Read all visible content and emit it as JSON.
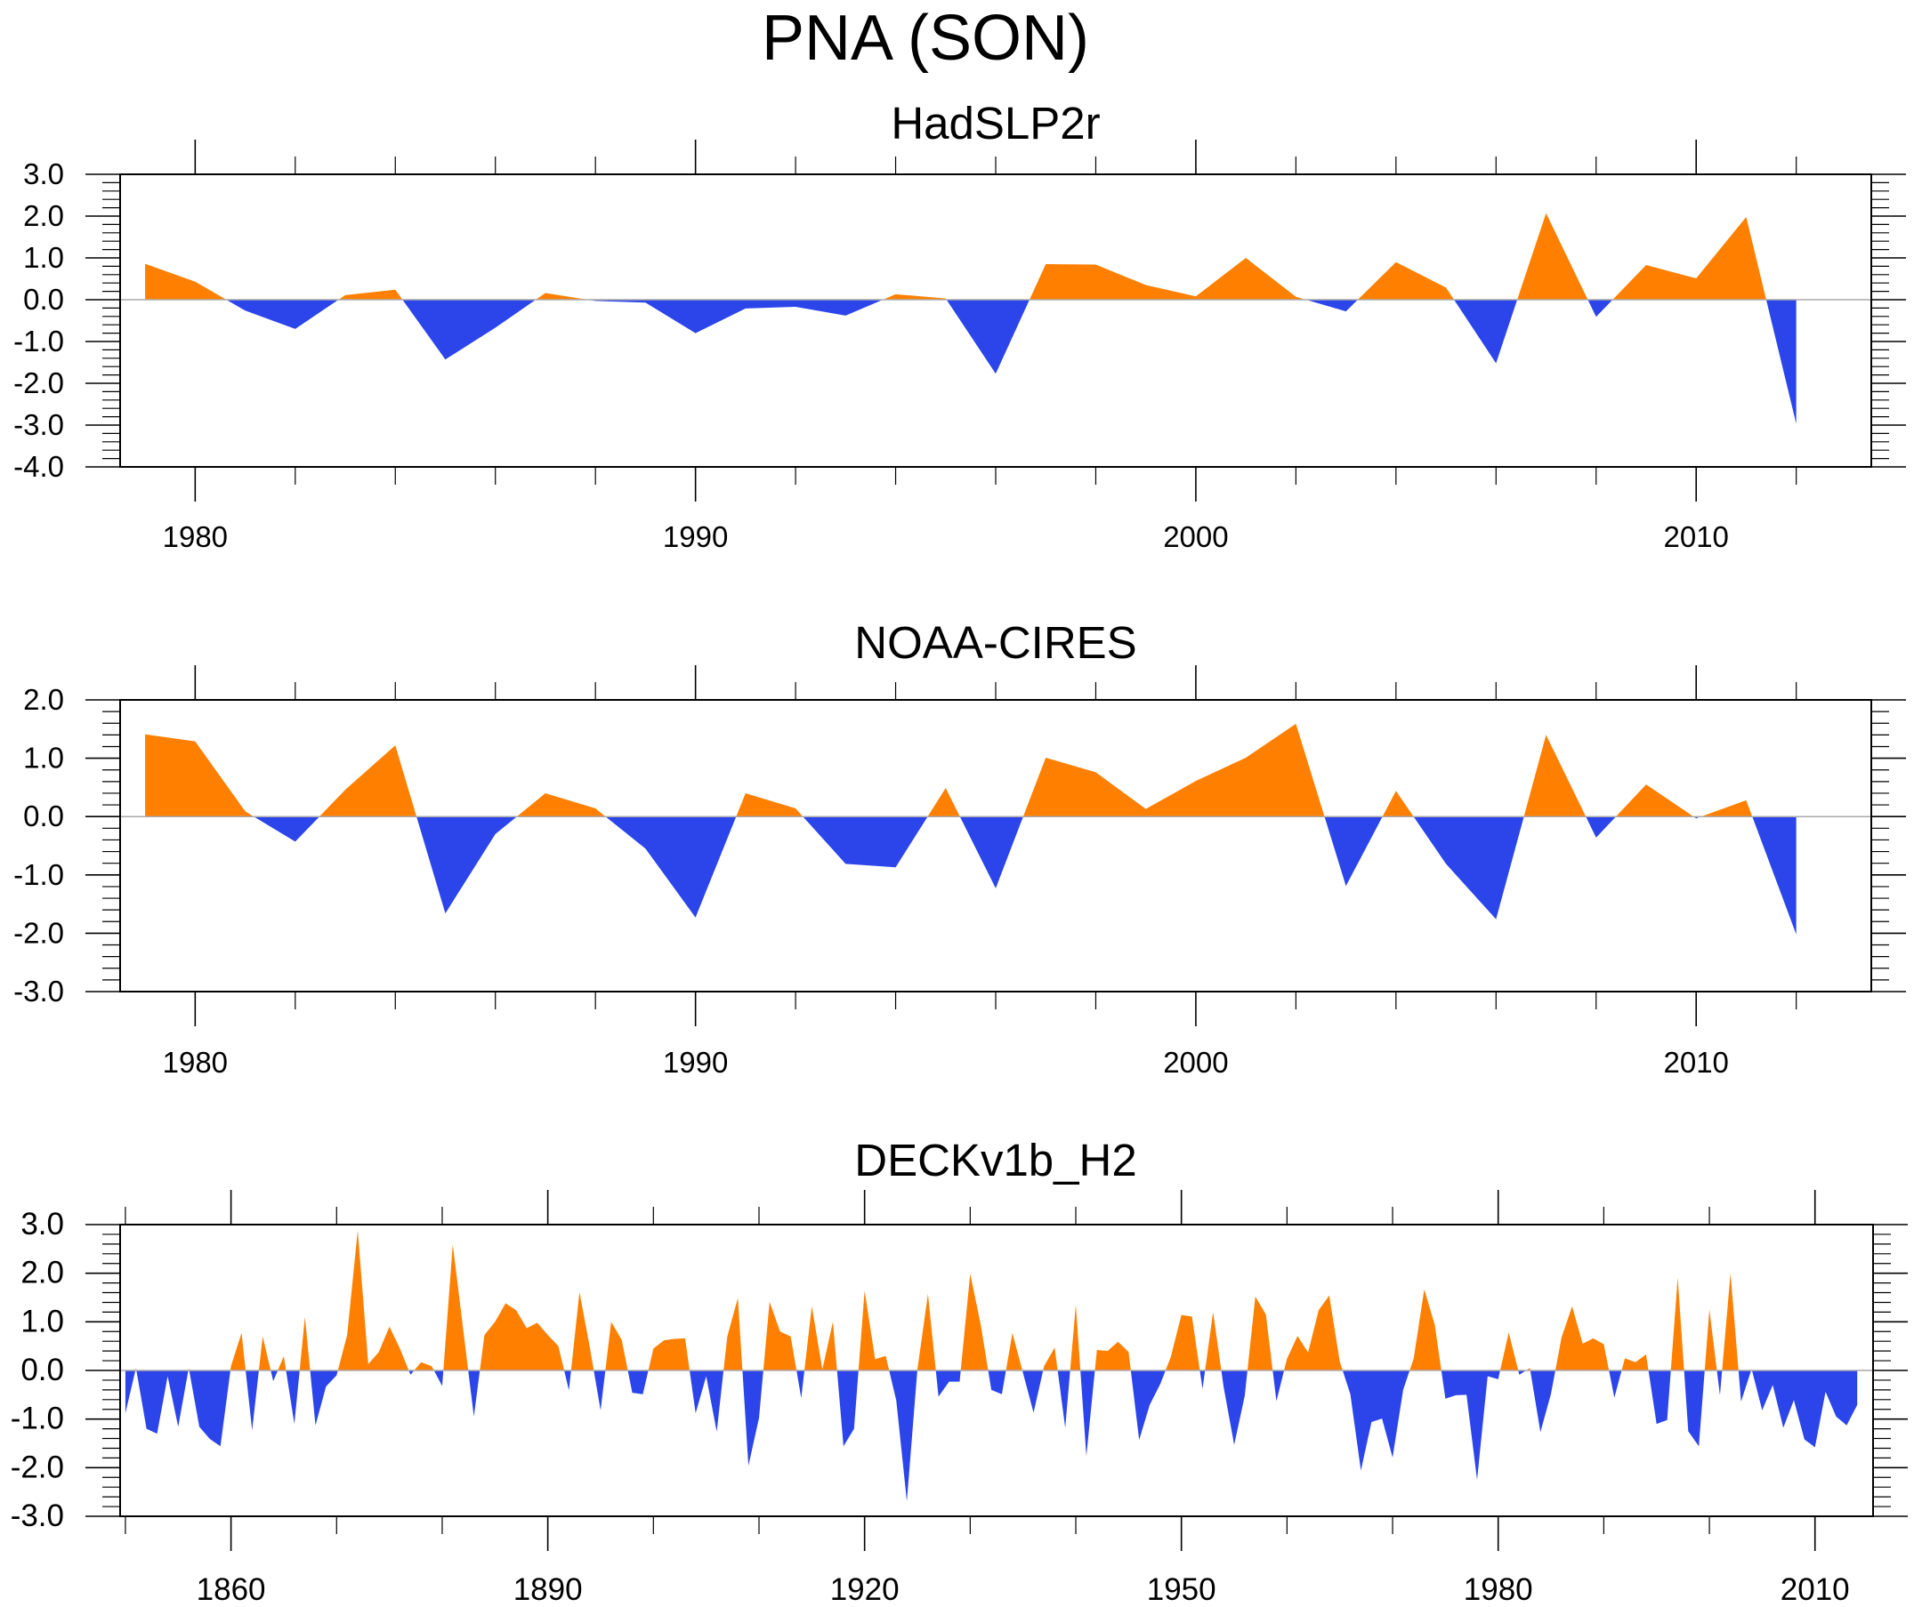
{
  "title": "PNA (SON)",
  "colors": {
    "positive": "#FF8000",
    "negative": "#2B45EB",
    "zero_line": "#AAAAAA",
    "axis": "#000000"
  },
  "chart_data": [
    {
      "type": "area",
      "title": "HadSLP2r",
      "xlabel": "",
      "ylabel": "",
      "xlim": [
        1978.5,
        2013.5
      ],
      "ylim": [
        -4.0,
        3.0
      ],
      "x_major_ticks": [
        1980,
        1990,
        2000,
        2010
      ],
      "x_major_tick_labels": [
        "1980",
        "1990",
        "2000",
        "2010"
      ],
      "x_minor_step": 2,
      "y_major_ticks": [
        3.0,
        2.0,
        1.0,
        0.0,
        -1.0,
        -2.0,
        -3.0,
        -4.0
      ],
      "y_tick_labels": [
        "3.0",
        "2.0",
        "1.0",
        "0.0",
        "-1.0",
        "-2.0",
        "-3.0",
        "-4.0"
      ],
      "y_minor_step": 0.2,
      "grid": false,
      "fill_above_zero": "positive",
      "fill_below_zero": "negative",
      "x_start": 1979,
      "values": [
        0.86,
        0.43,
        -0.26,
        -0.7,
        0.11,
        0.24,
        -1.43,
        -0.67,
        0.16,
        -0.03,
        -0.07,
        -0.8,
        -0.21,
        -0.17,
        -0.38,
        0.13,
        0.03,
        -1.77,
        0.85,
        0.84,
        0.35,
        0.08,
        1.0,
        0.07,
        -0.28,
        0.9,
        0.29,
        -1.52,
        2.07,
        -0.41,
        0.83,
        0.51,
        1.98,
        -2.97
      ]
    },
    {
      "type": "area",
      "title": "NOAA-CIRES",
      "xlabel": "",
      "ylabel": "",
      "xlim": [
        1978.5,
        2013.5
      ],
      "ylim": [
        -3.0,
        2.0
      ],
      "x_major_ticks": [
        1980,
        1990,
        2000,
        2010
      ],
      "x_major_tick_labels": [
        "1980",
        "1990",
        "2000",
        "2010"
      ],
      "x_minor_step": 2,
      "y_major_ticks": [
        2.0,
        1.0,
        0.0,
        -1.0,
        -2.0,
        -3.0
      ],
      "y_tick_labels": [
        "2.0",
        "1.0",
        "0.0",
        "-1.0",
        "-2.0",
        "-3.0"
      ],
      "y_minor_step": 0.2,
      "grid": false,
      "fill_above_zero": "positive",
      "fill_below_zero": "negative",
      "x_start": 1979,
      "values": [
        1.41,
        1.29,
        0.09,
        -0.43,
        0.46,
        1.22,
        -1.66,
        -0.3,
        0.4,
        0.14,
        -0.55,
        -1.73,
        0.4,
        0.14,
        -0.81,
        -0.87,
        0.49,
        -1.23,
        1.01,
        0.76,
        0.13,
        0.61,
        1.01,
        1.59,
        -1.19,
        0.44,
        -0.81,
        -1.76,
        1.4,
        -0.36,
        0.55,
        -0.03,
        0.28,
        -2.02
      ]
    },
    {
      "type": "area",
      "title": "DECKv1b_H2",
      "xlabel": "",
      "ylabel": "",
      "xlim": [
        1849.5,
        2015.5
      ],
      "ylim": [
        -3.0,
        3.0
      ],
      "x_major_ticks": [
        1860,
        1890,
        1920,
        1950,
        1980,
        2010
      ],
      "x_major_tick_labels": [
        "1860",
        "1890",
        "1920",
        "1950",
        "1980",
        "2010"
      ],
      "x_minor_step": 10,
      "y_major_ticks": [
        3.0,
        2.0,
        1.0,
        0.0,
        -1.0,
        -2.0,
        -3.0
      ],
      "y_tick_labels": [
        "3.0",
        "2.0",
        "1.0",
        "0.0",
        "-1.0",
        "-2.0",
        "-3.0"
      ],
      "y_minor_step": 0.2,
      "grid": false,
      "fill_above_zero": "positive",
      "fill_below_zero": "negative",
      "x_start": 1850,
      "values": [
        -0.88,
        0.05,
        -1.2,
        -1.3,
        -0.12,
        -1.16,
        0.05,
        -1.16,
        -1.41,
        -1.56,
        0.09,
        0.77,
        -1.23,
        0.7,
        -0.22,
        0.29,
        -1.1,
        1.1,
        -1.13,
        -0.33,
        -0.1,
        0.73,
        2.88,
        0.13,
        0.38,
        0.9,
        0.45,
        -0.09,
        0.17,
        0.09,
        -0.32,
        2.59,
        0.82,
        -0.95,
        0.73,
        1.0,
        1.38,
        1.24,
        0.87,
        0.98,
        0.73,
        0.5,
        -0.41,
        1.61,
        0.45,
        -0.82,
        1.0,
        0.63,
        -0.46,
        -0.49,
        0.45,
        0.62,
        0.65,
        0.66,
        -0.88,
        -0.12,
        -1.26,
        0.7,
        1.49,
        -1.96,
        -0.98,
        1.41,
        0.8,
        0.7,
        -0.57,
        1.32,
        0.02,
        1.0,
        -1.56,
        -1.2,
        1.64,
        0.23,
        0.3,
        -0.62,
        -2.69,
        0.02,
        1.57,
        -0.54,
        -0.23,
        -0.23,
        1.99,
        0.94,
        -0.4,
        -0.49,
        0.77,
        -0.05,
        -0.87,
        0.09,
        0.47,
        -1.18,
        1.35,
        -1.76,
        0.42,
        0.4,
        0.59,
        0.38,
        -1.43,
        -0.71,
        -0.28,
        0.28,
        1.14,
        1.11,
        -0.38,
        1.2,
        -0.34,
        -1.53,
        -0.52,
        1.52,
        1.15,
        -0.63,
        0.24,
        0.71,
        0.37,
        1.24,
        1.54,
        0.18,
        -0.49,
        -2.06,
        -1.06,
        -0.99,
        -1.79,
        -0.4,
        0.25,
        1.67,
        0.93,
        -0.58,
        -0.51,
        -0.5,
        -2.25,
        -0.12,
        -0.18,
        0.78,
        -0.09,
        0.05,
        -1.27,
        -0.48,
        0.68,
        1.32,
        0.55,
        0.66,
        0.54,
        -0.56,
        0.25,
        0.17,
        0.33,
        -1.1,
        -1.02,
        1.91,
        -1.25,
        -1.56,
        1.25,
        -0.51,
        2.0,
        -0.64,
        0.03,
        -0.82,
        -0.3,
        -1.18,
        -0.61,
        -1.42,
        -1.58,
        -0.44,
        -0.95,
        -1.13,
        -0.71
      ]
    }
  ]
}
